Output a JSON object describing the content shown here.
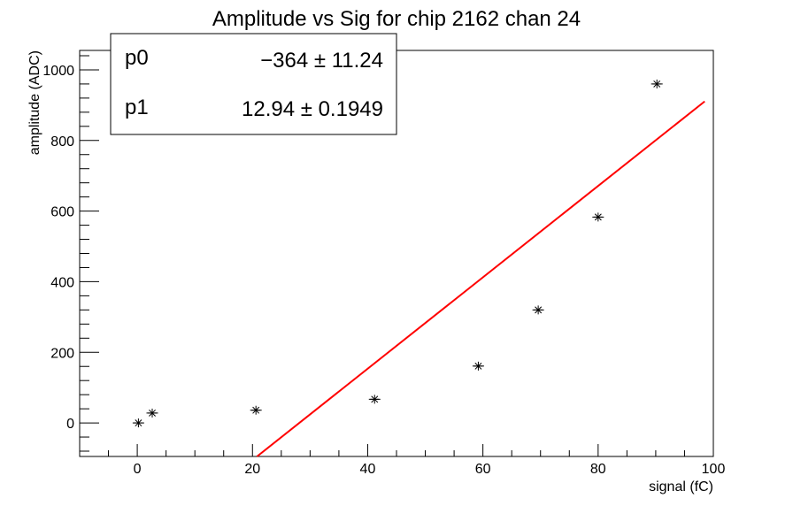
{
  "chart_data": {
    "type": "scatter",
    "title": "Amplitude vs Sig for chip 2162 chan 24",
    "xlabel": "signal (fC)",
    "ylabel": "amplitude (ADC)",
    "xlim": [
      -10,
      100
    ],
    "ylim": [
      -95,
      1055
    ],
    "x_ticks": [
      0,
      20,
      40,
      60,
      80,
      100
    ],
    "y_ticks": [
      0,
      200,
      400,
      600,
      800,
      1000
    ],
    "grid": false,
    "series": [
      {
        "marker": "asterisk",
        "x": [
          0.2,
          2.6,
          20.6,
          41.2,
          59.2,
          69.6,
          80.0,
          90.2
        ],
        "y": [
          0,
          28,
          36,
          67,
          161,
          320,
          583,
          960
        ],
        "x_err": [
          1,
          1,
          1,
          1,
          1,
          1,
          1,
          1
        ]
      }
    ],
    "fit": {
      "type": "linear",
      "color": "#ff0000",
      "p0": -364,
      "p1": 12.94,
      "x_range": [
        20.5,
        98.5
      ]
    },
    "stats": {
      "rows": [
        {
          "name": "p0",
          "value": "−364 ± 11.24"
        },
        {
          "name": "p1",
          "value": "12.94 ± 0.1949"
        }
      ]
    }
  }
}
